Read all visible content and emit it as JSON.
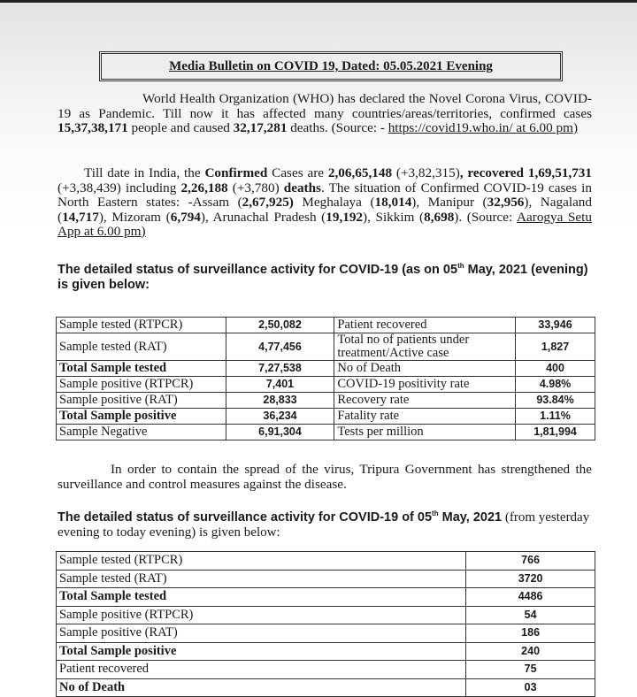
{
  "title": "Media Bulletin on COVID 19, Dated: 05.05.2021 Evening",
  "para1": {
    "t1": "World Health Organization (WHO) has declared the Novel Corona Virus, COVID-19 as Pandemic. Till now it has affected many countries/areas/territories, confirmed cases ",
    "cases": "15,37,38,171",
    "t2": " people and caused ",
    "deaths": "32,17,281",
    "t3": " deaths. (Source: - ",
    "source": "https://covid19.who.in/ at 6.00 pm)"
  },
  "para2": {
    "t1": "Till date in India, the ",
    "confirmed_label": "Confirmed",
    "t2": " Cases are ",
    "confirmed": "2,06,65,148",
    "confirmed_delta": " (+3,82,315)",
    "recovered_label": ", recovered",
    "recovered": "1,69,51,731",
    "recovered_delta": " (+3,38,439) including ",
    "deaths": "2,26,188",
    "deaths_delta": " (+3,780) ",
    "deaths_label": "deaths",
    "t3": ". The situation of Confirmed COVID-19 cases in North Eastern states: -Assam (",
    "assam": "2,67,925)",
    "t4": " Meghalaya (",
    "meghalaya": "18,014",
    "t5": "), Manipur (",
    "manipur": "32,956",
    "t6": "), Nagaland (",
    "nagaland": "14,717",
    "t7": "), Mizoram (",
    "mizoram": "6,794",
    "t8": "), Arunachal Pradesh (",
    "arunachal": "19,192",
    "t9": "), Sikkim (",
    "sikkim": "8,698",
    "t10": "). (Source: ",
    "source": "Aarogya Setu App at 6.00 pm)"
  },
  "heading1": {
    "a": "The detailed status of surveillance activity for COVID-19 (as on 05",
    "sup": "th",
    "b": " May, 2021 (evening) is given below:"
  },
  "table1": [
    {
      "l": "Sample tested (RTPCR)",
      "lv": "2,50,082",
      "r": "Patient recovered",
      "rv": "33,946"
    },
    {
      "l": "Sample tested (RAT)",
      "lv": "4,77,456",
      "r": "Total no of patients under treatment/Active case",
      "rv": "1,827"
    },
    {
      "l": "Total Sample tested",
      "lv": "7,27,538",
      "r": "No of Death",
      "rv": "400"
    },
    {
      "l": "Sample positive (RTPCR)",
      "lv": "7,401",
      "r": "COVID-19 positivity rate",
      "rv": "4.98%"
    },
    {
      "l": "Sample positive (RAT)",
      "lv": "28,833",
      "r": "Recovery rate",
      "rv": "93.84%"
    },
    {
      "l": "Total Sample positive",
      "lv": "36,234",
      "r": "Fatality rate",
      "rv": "1.11%"
    },
    {
      "l": "Sample Negative",
      "lv": "6,91,304",
      "r": "Tests per million",
      "rv": "1,81,994"
    }
  ],
  "para3": "In order to contain the spread of the virus, Tripura Government has strengthened the surveillance and control measures against the disease.",
  "heading2": {
    "a": "The detailed status of surveillance activity for COVID-19 of 05",
    "sup": "th",
    "b": " May, 2021",
    "c": " (from yesterday evening to today evening) is given below:"
  },
  "table2": [
    {
      "l": "Sample tested (RTPCR)",
      "v": "766"
    },
    {
      "l": "Sample tested (RAT)",
      "v": "3720"
    },
    {
      "l": "Total Sample tested",
      "v": "4486"
    },
    {
      "l": "Sample positive (RTPCR)",
      "v": "54"
    },
    {
      "l": "Sample positive (RAT)",
      "v": "186"
    },
    {
      "l": "Total Sample positive",
      "v": "240"
    },
    {
      "l": "Patient recovered",
      "v": "75"
    },
    {
      "l": "No of Death",
      "v": "03"
    }
  ]
}
